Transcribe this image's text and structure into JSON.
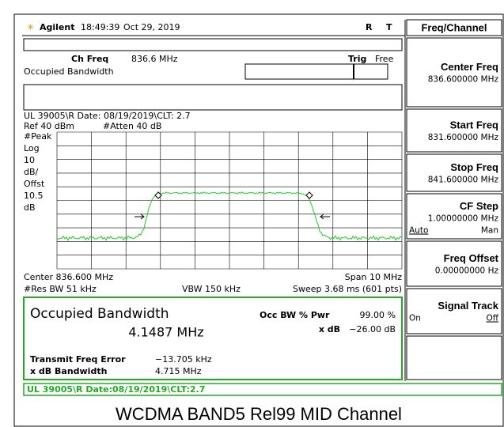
{
  "status_bar": {
    "brand": "Agilent",
    "time": "18:49:39",
    "date": "Oct 29, 2019",
    "flag_r": "R",
    "flag_t": "T"
  },
  "menu": {
    "title": "Freq/Channel",
    "keys": [
      {
        "label": "Center Freq",
        "value": "836.600000 MHz"
      },
      {
        "label": "Start Freq",
        "value": "831.600000 MHz"
      },
      {
        "label": "Stop Freq",
        "value": "841.600000 MHz"
      },
      {
        "label": "CF Step",
        "value": "1.00000000 MHz",
        "options": [
          "Auto",
          "Man"
        ]
      },
      {
        "label": "Freq Offset",
        "value": "0.00000000  Hz"
      },
      {
        "label": "Signal Track",
        "options": [
          "On",
          "Off"
        ]
      }
    ]
  },
  "measurement": {
    "ch_freq_label": "Ch Freq",
    "ch_freq": "836.6 MHz",
    "trig_label": "Trig",
    "trig": "Free",
    "mode": "Occupied Bandwidth",
    "note": "UL 39005\\R Date: 08/19/2019\\CLT: 2.7",
    "ref": "Ref 40 dBm",
    "atten": "#Atten 40 dB",
    "scale_labels": [
      "#Peak",
      "Log",
      "10",
      "dB/",
      "Offst",
      "10.5",
      "dB"
    ],
    "center": "Center 836.600 MHz",
    "span": "Span 10 MHz",
    "rbw": "#Res BW 51 kHz",
    "vbw": "VBW 150 kHz",
    "sweep": "Sweep 3.68 ms (601 pts)"
  },
  "results": {
    "title": "Occupied Bandwidth",
    "value": "4.1487 MHz",
    "pwr_label": "Occ BW % Pwr",
    "pwr": "99.00 %",
    "xdb_label": "x dB",
    "xdb": "−26.00 dB",
    "tfe_label": "Transmit Freq Error",
    "tfe": "−13.705 kHz",
    "xbw_label": "x dB Bandwidth",
    "xbw": "4.715 MHz"
  },
  "footer_status": "UL 39005\\R Date:08/19/2019\\CLT:2.7",
  "caption": "WCDMA BAND5 Rel99 MID Channel"
}
